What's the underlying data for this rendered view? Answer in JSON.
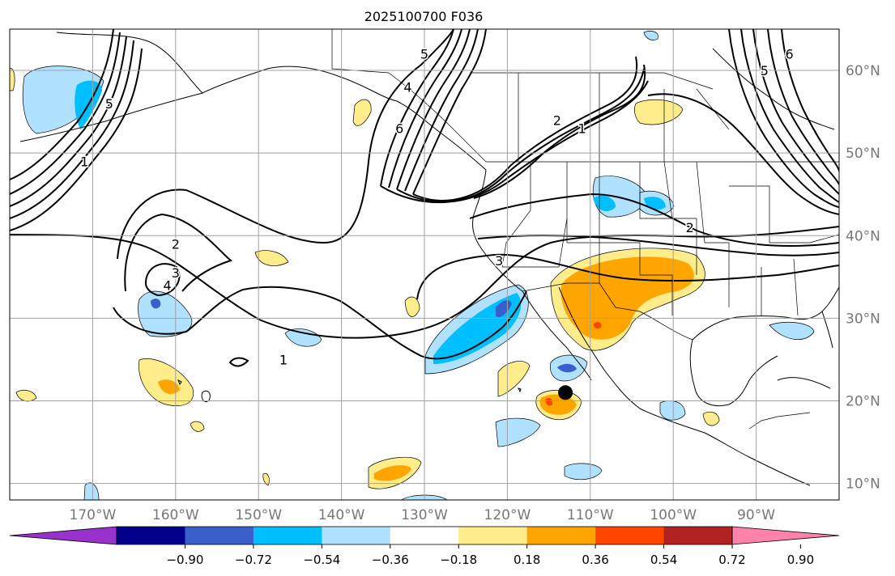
{
  "title": "2025100700 F036",
  "map": {
    "lon_range": [
      -180,
      -80
    ],
    "lat_range": [
      8,
      65
    ],
    "gridline_color": "#a0a0a0",
    "lon_labels": [
      {
        "lon": -170,
        "text": "170°W"
      },
      {
        "lon": -160,
        "text": "160°W"
      },
      {
        "lon": -150,
        "text": "150°W"
      },
      {
        "lon": -140,
        "text": "140°W"
      },
      {
        "lon": -130,
        "text": "130°W"
      },
      {
        "lon": -120,
        "text": "120°W"
      },
      {
        "lon": -110,
        "text": "110°W"
      },
      {
        "lon": -100,
        "text": "100°W"
      },
      {
        "lon": -90,
        "text": "90°W"
      }
    ],
    "lat_labels": [
      {
        "lat": 60,
        "text": "60°N"
      },
      {
        "lat": 50,
        "text": "50°N"
      },
      {
        "lat": 40,
        "text": "40°N"
      },
      {
        "lat": 30,
        "text": "30°N"
      },
      {
        "lat": 20,
        "text": "20°N"
      },
      {
        "lat": 10,
        "text": "10°N"
      }
    ],
    "marker": {
      "label": "point-of-interest",
      "lon": -113,
      "lat": 21
    }
  },
  "contour_labels": [
    {
      "text": "1",
      "lon": -171,
      "lat": 49
    },
    {
      "text": "5",
      "lon": -168,
      "lat": 56
    },
    {
      "text": "2",
      "lon": -160,
      "lat": 39
    },
    {
      "text": "3",
      "lon": -160,
      "lat": 35.5
    },
    {
      "text": "4",
      "lon": -161,
      "lat": 34
    },
    {
      "text": "1",
      "lon": -147,
      "lat": 25
    },
    {
      "text": "5",
      "lon": -130,
      "lat": 62
    },
    {
      "text": "4",
      "lon": -132,
      "lat": 58
    },
    {
      "text": "6",
      "lon": -133,
      "lat": 53
    },
    {
      "text": "2",
      "lon": -114,
      "lat": 54
    },
    {
      "text": "1",
      "lon": -111,
      "lat": 53
    },
    {
      "text": "2",
      "lon": -98,
      "lat": 41
    },
    {
      "text": "6",
      "lon": -86,
      "lat": 62
    },
    {
      "text": "5",
      "lon": -89,
      "lat": 60
    },
    {
      "text": "3",
      "lon": -121,
      "lat": 37
    }
  ],
  "colorbar": {
    "colors": [
      "#9932cc",
      "#00008b",
      "#3a5fcd",
      "#00bfff",
      "#b0e2ff",
      "#ffffff",
      "#ffec8b",
      "#ffa500",
      "#ff4500",
      "#b22222",
      "#ff82ab"
    ],
    "ticks": [
      "−0.90",
      "−0.72",
      "−0.54",
      "−0.36",
      "−0.18",
      "0.18",
      "0.36",
      "0.54",
      "0.72",
      "0.90"
    ]
  }
}
